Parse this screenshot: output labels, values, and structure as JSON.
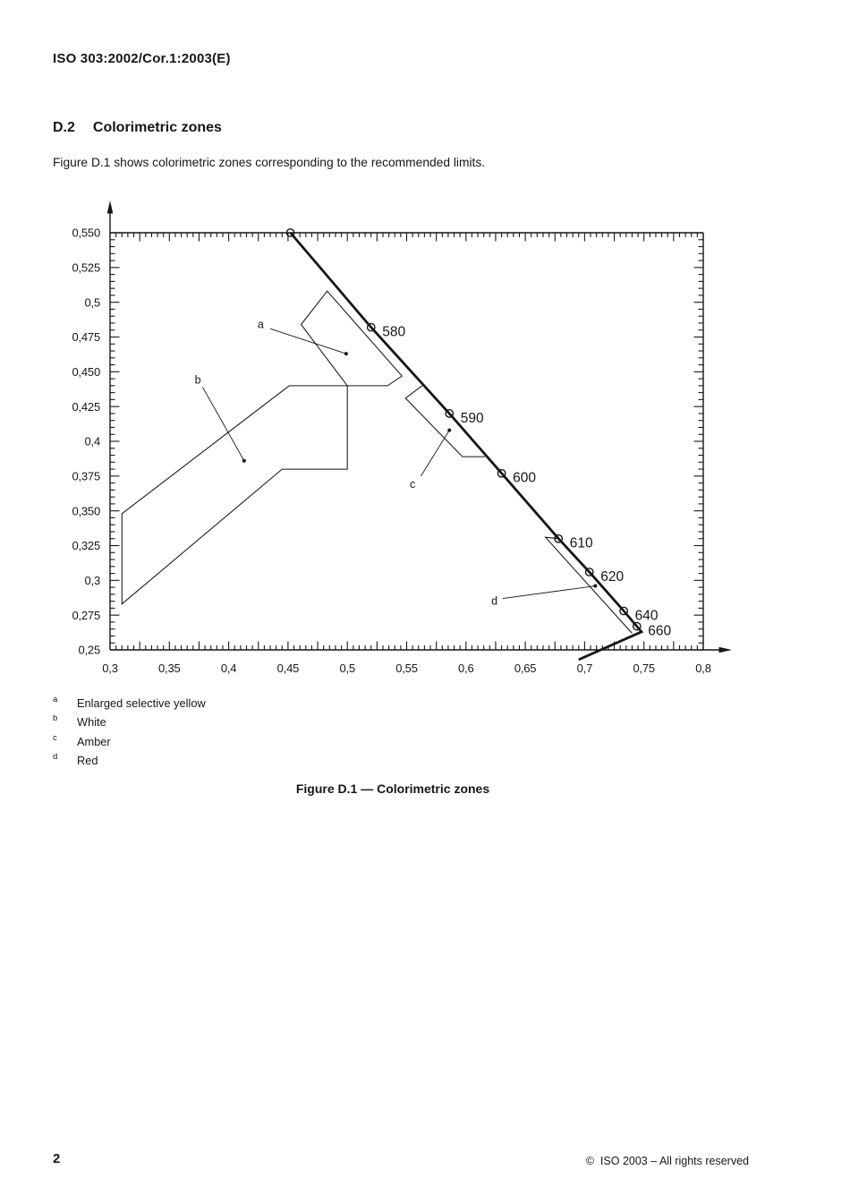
{
  "page": {
    "header": "ISO 303:2002/Cor.1:2003(E)",
    "section_number": "D.2",
    "section_title": "Colorimetric zones",
    "intro": "Figure D.1 shows colorimetric zones corresponding to the recommended limits.",
    "caption": "Figure D.1 — Colorimetric zones",
    "page_number": "2",
    "copyright": "©  ISO 2003 – All rights reserved"
  },
  "footnotes": [
    {
      "ref": "a",
      "text": "Enlarged selective yellow"
    },
    {
      "ref": "b",
      "text": "White"
    },
    {
      "ref": "c",
      "text": "Amber"
    },
    {
      "ref": "d",
      "text": "Red"
    }
  ],
  "chart_data": {
    "type": "line",
    "title": "Figure D.1 — Colorimetric zones",
    "xlim": [
      0.3,
      0.8
    ],
    "ylim": [
      0.25,
      0.55
    ],
    "grid": "none",
    "minor_tick_step": 0.005,
    "medium_tick_step": 0.025,
    "x_ticks": [
      {
        "v": 0.3,
        "label": "0,3"
      },
      {
        "v": 0.35,
        "label": "0,35"
      },
      {
        "v": 0.4,
        "label": "0,4"
      },
      {
        "v": 0.45,
        "label": "0,45"
      },
      {
        "v": 0.5,
        "label": "0,5"
      },
      {
        "v": 0.55,
        "label": "0,55"
      },
      {
        "v": 0.6,
        "label": "0,6"
      },
      {
        "v": 0.65,
        "label": "0,65"
      },
      {
        "v": 0.7,
        "label": "0,7"
      },
      {
        "v": 0.75,
        "label": "0,75"
      },
      {
        "v": 0.8,
        "label": "0,8"
      }
    ],
    "y_ticks": [
      {
        "v": 0.55,
        "label": "0,550"
      },
      {
        "v": 0.525,
        "label": "0,525"
      },
      {
        "v": 0.5,
        "label": "0,5"
      },
      {
        "v": 0.475,
        "label": "0,475"
      },
      {
        "v": 0.45,
        "label": "0,450"
      },
      {
        "v": 0.425,
        "label": "0,425"
      },
      {
        "v": 0.4,
        "label": "0,4"
      },
      {
        "v": 0.375,
        "label": "0,375"
      },
      {
        "v": 0.35,
        "label": "0,350"
      },
      {
        "v": 0.325,
        "label": "0,325"
      },
      {
        "v": 0.3,
        "label": "0,3"
      },
      {
        "v": 0.275,
        "label": "0,275"
      },
      {
        "v": 0.25,
        "label": "0,25"
      }
    ],
    "spectral_locus": {
      "path": [
        [
          0.452,
          0.55
        ],
        [
          0.52,
          0.482
        ],
        [
          0.586,
          0.42
        ],
        [
          0.63,
          0.377
        ],
        [
          0.678,
          0.33
        ],
        [
          0.704,
          0.306
        ],
        [
          0.733,
          0.278
        ],
        [
          0.744,
          0.267
        ],
        [
          0.748,
          0.263
        ],
        [
          0.695,
          0.243
        ]
      ],
      "wavelength_markers": [
        {
          "label": "",
          "x": 0.452,
          "y": 0.55
        },
        {
          "label": "580",
          "x": 0.52,
          "y": 0.482
        },
        {
          "label": "590",
          "x": 0.586,
          "y": 0.42
        },
        {
          "label": "600",
          "x": 0.63,
          "y": 0.377
        },
        {
          "label": "610",
          "x": 0.678,
          "y": 0.33
        },
        {
          "label": "620",
          "x": 0.704,
          "y": 0.306
        },
        {
          "label": "640",
          "x": 0.733,
          "y": 0.278
        },
        {
          "label": "660",
          "x": 0.744,
          "y": 0.267
        }
      ]
    },
    "zones": [
      {
        "id": "a",
        "name": "Enlarged selective yellow",
        "closed": true,
        "polygon": [
          [
            0.483,
            0.508
          ],
          [
            0.461,
            0.484
          ],
          [
            0.5,
            0.44
          ],
          [
            0.534,
            0.44
          ],
          [
            0.546,
            0.447
          ]
        ],
        "label_xy": [
          0.427,
          0.484
        ],
        "leader": [
          [
            0.435,
            0.481
          ],
          [
            0.499,
            0.463
          ]
        ]
      },
      {
        "id": "b",
        "name": "White",
        "closed": true,
        "polygon": [
          [
            0.31,
            0.348
          ],
          [
            0.451,
            0.44
          ],
          [
            0.5,
            0.44
          ],
          [
            0.5,
            0.38
          ],
          [
            0.445,
            0.38
          ],
          [
            0.31,
            0.283
          ]
        ],
        "label_xy": [
          0.374,
          0.444
        ],
        "leader": [
          [
            0.378,
            0.439
          ],
          [
            0.413,
            0.386
          ]
        ]
      },
      {
        "id": "c",
        "name": "Amber",
        "closed": false,
        "polygon": [
          [
            0.563,
            0.44
          ],
          [
            0.549,
            0.431
          ],
          [
            0.597,
            0.389
          ],
          [
            0.616,
            0.389
          ]
        ],
        "label_xy": [
          0.555,
          0.369
        ],
        "leader": [
          [
            0.562,
            0.375
          ],
          [
            0.586,
            0.408
          ]
        ]
      },
      {
        "id": "d",
        "name": "Red",
        "closed": false,
        "polygon": [
          [
            0.678,
            0.33
          ],
          [
            0.667,
            0.331
          ],
          [
            0.74,
            0.262
          ]
        ],
        "label_xy": [
          0.624,
          0.285
        ],
        "leader": [
          [
            0.631,
            0.287
          ],
          [
            0.709,
            0.296
          ]
        ]
      }
    ]
  }
}
